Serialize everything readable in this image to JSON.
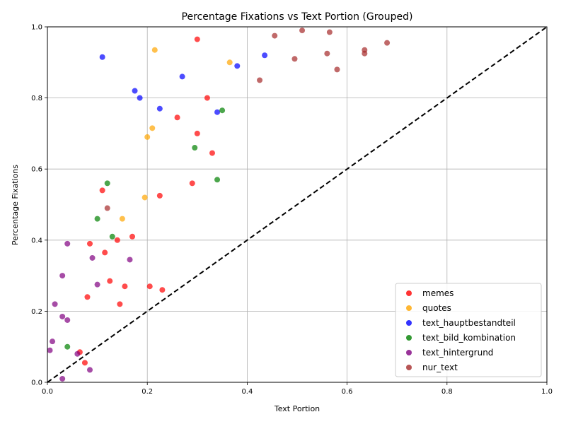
{
  "chart_data": {
    "type": "scatter",
    "title": "Percentage Fixations vs Text Portion (Grouped)",
    "xlabel": "Text Portion",
    "ylabel": "Percentage Fixations",
    "xlim": [
      0,
      1
    ],
    "ylim": [
      0,
      1
    ],
    "x_ticks": [
      "0.0",
      "0.2",
      "0.4",
      "0.6",
      "0.8",
      "1.0"
    ],
    "y_ticks": [
      "0.0",
      "0.2",
      "0.4",
      "0.6",
      "0.8",
      "1.0"
    ],
    "grid": true,
    "legend_position": "lower-right",
    "reference_line": {
      "style": "dashed",
      "color": "#000000",
      "from": [
        0,
        0
      ],
      "to": [
        1,
        1
      ]
    },
    "series": [
      {
        "name": "memes",
        "color": "#ff0000",
        "points": [
          [
            0.3,
            0.965
          ],
          [
            0.32,
            0.8
          ],
          [
            0.26,
            0.745
          ],
          [
            0.3,
            0.7
          ],
          [
            0.33,
            0.645
          ],
          [
            0.29,
            0.56
          ],
          [
            0.225,
            0.525
          ],
          [
            0.11,
            0.54
          ],
          [
            0.17,
            0.41
          ],
          [
            0.14,
            0.4
          ],
          [
            0.085,
            0.39
          ],
          [
            0.115,
            0.365
          ],
          [
            0.125,
            0.285
          ],
          [
            0.155,
            0.27
          ],
          [
            0.205,
            0.27
          ],
          [
            0.23,
            0.26
          ],
          [
            0.08,
            0.24
          ],
          [
            0.145,
            0.22
          ],
          [
            0.065,
            0.085
          ],
          [
            0.075,
            0.055
          ]
        ]
      },
      {
        "name": "quotes",
        "color": "#ffa500",
        "points": [
          [
            0.215,
            0.935
          ],
          [
            0.365,
            0.9
          ],
          [
            0.21,
            0.715
          ],
          [
            0.2,
            0.69
          ],
          [
            0.195,
            0.52
          ],
          [
            0.15,
            0.46
          ]
        ]
      },
      {
        "name": "text_hauptbestandteil",
        "color": "#0000ff",
        "points": [
          [
            0.11,
            0.915
          ],
          [
            0.435,
            0.92
          ],
          [
            0.38,
            0.89
          ],
          [
            0.27,
            0.86
          ],
          [
            0.175,
            0.82
          ],
          [
            0.185,
            0.8
          ],
          [
            0.225,
            0.77
          ],
          [
            0.34,
            0.76
          ]
        ]
      },
      {
        "name": "text_bild_kombination",
        "color": "#008000",
        "points": [
          [
            0.35,
            0.765
          ],
          [
            0.295,
            0.66
          ],
          [
            0.34,
            0.57
          ],
          [
            0.12,
            0.56
          ],
          [
            0.1,
            0.46
          ],
          [
            0.13,
            0.41
          ],
          [
            0.04,
            0.1
          ]
        ]
      },
      {
        "name": "text_hintergrund",
        "color": "#800080",
        "points": [
          [
            0.04,
            0.39
          ],
          [
            0.09,
            0.35
          ],
          [
            0.165,
            0.345
          ],
          [
            0.03,
            0.3
          ],
          [
            0.1,
            0.275
          ],
          [
            0.015,
            0.22
          ],
          [
            0.03,
            0.185
          ],
          [
            0.04,
            0.175
          ],
          [
            0.01,
            0.115
          ],
          [
            0.005,
            0.09
          ],
          [
            0.06,
            0.08
          ],
          [
            0.085,
            0.035
          ],
          [
            0.03,
            0.01
          ]
        ]
      },
      {
        "name": "nur_text",
        "color": "#a52a2a",
        "points": [
          [
            0.51,
            0.99
          ],
          [
            0.565,
            0.985
          ],
          [
            0.455,
            0.975
          ],
          [
            0.68,
            0.955
          ],
          [
            0.635,
            0.935
          ],
          [
            0.635,
            0.925
          ],
          [
            0.56,
            0.925
          ],
          [
            0.495,
            0.91
          ],
          [
            0.58,
            0.88
          ],
          [
            0.425,
            0.85
          ],
          [
            0.12,
            0.49
          ]
        ]
      }
    ]
  }
}
